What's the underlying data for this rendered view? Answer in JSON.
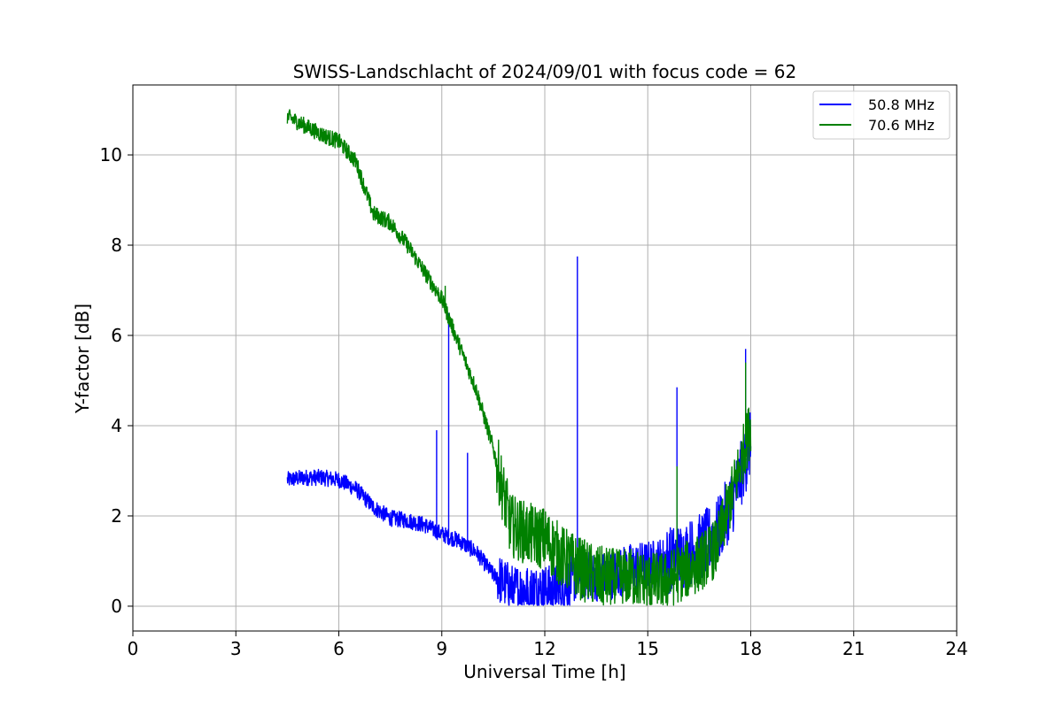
{
  "chart_data": {
    "type": "line",
    "title": "SWISS-Landschlacht of 2024/09/01 with focus code = 62",
    "xlabel": "Universal Time [h]",
    "ylabel": "Y-factor [dB]",
    "xlim": [
      0,
      24
    ],
    "ylim": [
      -0.55,
      11.55
    ],
    "xticks": [
      0,
      3,
      6,
      9,
      12,
      15,
      18,
      21,
      24
    ],
    "yticks": [
      0,
      2,
      4,
      6,
      8,
      10
    ],
    "grid": true,
    "legend_position": "top-right",
    "series": [
      {
        "name": "50.8 MHz",
        "color": "#0000ff",
        "x": [
          4.5,
          5.0,
          5.5,
          6.0,
          6.5,
          7.0,
          7.5,
          8.0,
          8.5,
          9.0,
          9.5,
          10.0,
          10.5,
          11.0,
          11.5,
          12.0,
          12.5,
          13.0,
          13.5,
          14.0,
          14.5,
          15.0,
          15.5,
          16.0,
          16.5,
          17.0,
          17.5,
          18.0
        ],
        "y": [
          2.8,
          2.85,
          2.85,
          2.8,
          2.6,
          2.2,
          1.95,
          1.9,
          1.8,
          1.6,
          1.45,
          1.2,
          0.7,
          0.4,
          0.35,
          0.35,
          0.4,
          0.7,
          0.65,
          0.7,
          0.85,
          0.9,
          1.0,
          1.1,
          1.3,
          1.6,
          2.4,
          3.6
        ],
        "spikes": [
          [
            8.85,
            3.9
          ],
          [
            9.2,
            6.5
          ],
          [
            9.75,
            3.4
          ],
          [
            12.95,
            7.75
          ],
          [
            15.85,
            4.85
          ],
          [
            17.85,
            5.7
          ]
        ]
      },
      {
        "name": "70.6 MHz",
        "color": "#008000",
        "x": [
          4.5,
          5.0,
          5.5,
          6.0,
          6.5,
          7.0,
          7.5,
          8.0,
          8.5,
          9.0,
          9.5,
          10.0,
          10.5,
          11.0,
          11.5,
          12.0,
          12.5,
          13.0,
          13.5,
          14.0,
          14.5,
          15.0,
          15.5,
          16.0,
          16.5,
          17.0,
          17.5,
          18.0
        ],
        "y": [
          10.85,
          10.65,
          10.45,
          10.3,
          9.85,
          8.7,
          8.5,
          8.0,
          7.4,
          6.8,
          5.8,
          4.8,
          3.5,
          1.8,
          1.6,
          1.5,
          1.1,
          0.85,
          0.65,
          0.6,
          0.65,
          0.55,
          0.55,
          0.75,
          0.95,
          1.3,
          2.6,
          4.0
        ],
        "spikes": [
          [
            9.1,
            7.1
          ],
          [
            15.85,
            3.1
          ],
          [
            17.85,
            5.4
          ]
        ]
      }
    ]
  }
}
